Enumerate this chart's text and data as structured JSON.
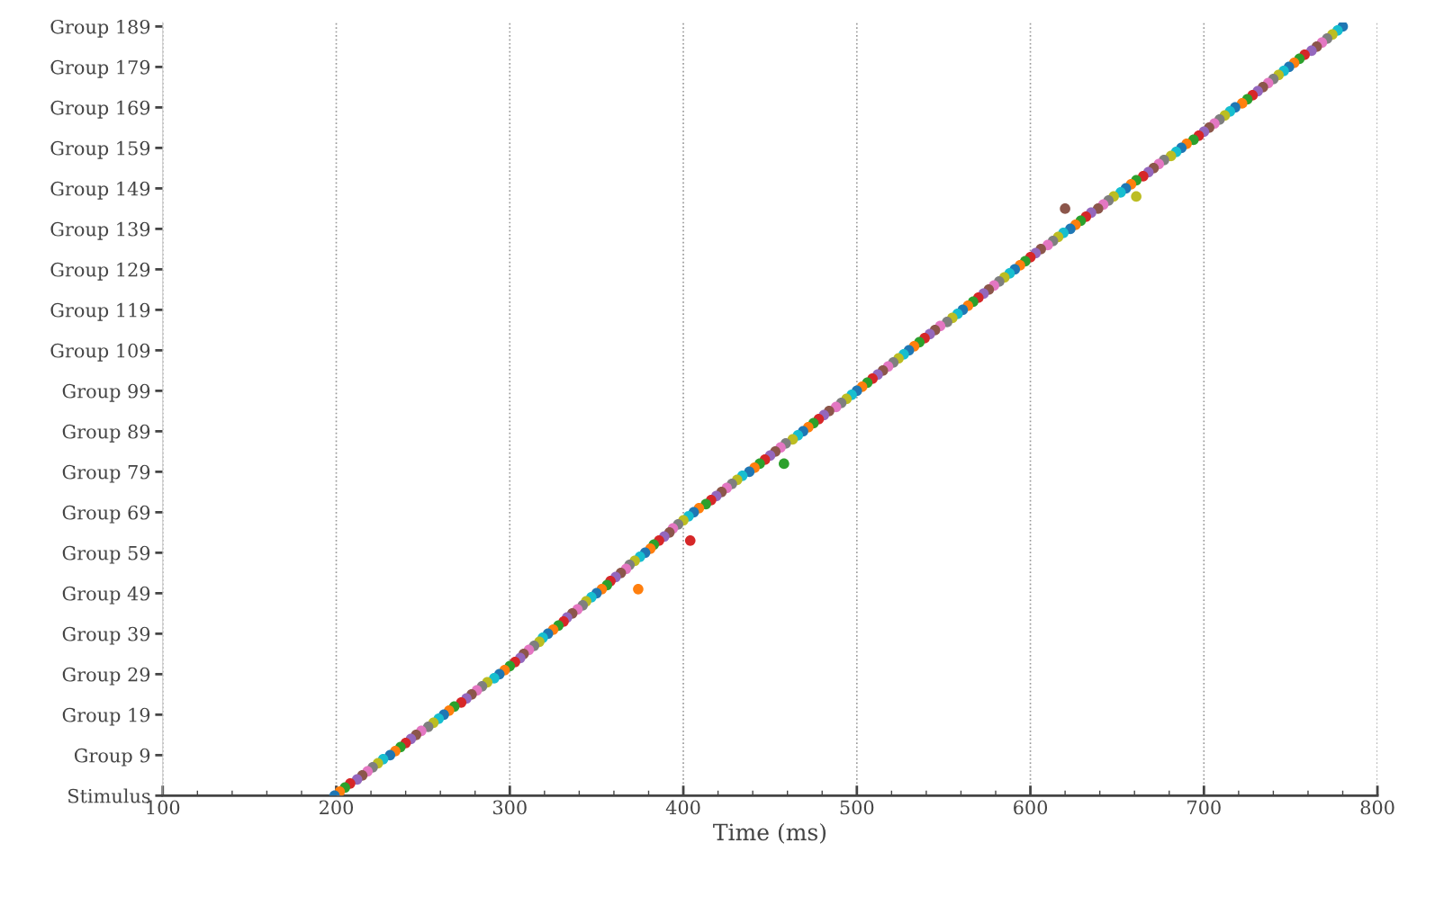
{
  "chart_data": {
    "type": "scatter",
    "orientation": "horizontal",
    "xlabel": "Time (ms)",
    "xlim": [
      100,
      800
    ],
    "xticks": [
      100,
      200,
      300,
      400,
      500,
      600,
      700,
      800
    ],
    "categories": [
      "Group 189",
      null,
      null,
      null,
      null,
      null,
      null,
      null,
      null,
      null,
      "Group 179",
      null,
      null,
      null,
      null,
      null,
      null,
      null,
      null,
      null,
      "Group 169",
      null,
      null,
      null,
      null,
      null,
      null,
      null,
      null,
      null,
      "Group 159",
      null,
      null,
      null,
      null,
      null,
      null,
      null,
      null,
      null,
      "Group 149",
      null,
      null,
      null,
      null,
      null,
      null,
      null,
      null,
      null,
      "Group 139",
      null,
      null,
      null,
      null,
      null,
      null,
      null,
      null,
      null,
      "Group 129",
      null,
      null,
      null,
      null,
      null,
      null,
      null,
      null,
      null,
      "Group 119",
      null,
      null,
      null,
      null,
      null,
      null,
      null,
      null,
      null,
      "Group 109",
      null,
      null,
      null,
      null,
      null,
      null,
      null,
      null,
      null,
      "Group 99",
      null,
      null,
      null,
      null,
      null,
      null,
      null,
      null,
      null,
      "Group 89",
      null,
      null,
      null,
      null,
      null,
      null,
      null,
      null,
      null,
      "Group 79",
      null,
      null,
      null,
      null,
      null,
      null,
      null,
      null,
      null,
      "Group 69",
      null,
      null,
      null,
      null,
      null,
      null,
      null,
      null,
      null,
      "Group 59",
      null,
      null,
      null,
      null,
      null,
      null,
      null,
      null,
      null,
      "Group 49",
      null,
      null,
      null,
      null,
      null,
      null,
      null,
      null,
      null,
      "Group 39",
      null,
      null,
      null,
      null,
      null,
      null,
      null,
      null,
      null,
      "Group 29",
      null,
      null,
      null,
      null,
      null,
      null,
      null,
      null,
      null,
      "Group 19",
      null,
      null,
      null,
      null,
      null,
      null,
      null,
      null,
      null,
      "Group 9",
      null,
      null,
      null,
      null,
      null,
      null,
      null,
      null,
      null,
      "Stimulus"
    ],
    "grid": "x",
    "marker": "circle",
    "series": [
      {
        "values": [
          780,
          777,
          774,
          771,
          768,
          765,
          762,
          758,
          755,
          752,
          749,
          746,
          743,
          740,
          737,
          734,
          731,
          728,
          725,
          722,
          718,
          715,
          712,
          709,
          706,
          703,
          700,
          697,
          694,
          690,
          687,
          684,
          681,
          677,
          674,
          671,
          668,
          665,
          661,
          658,
          655,
          652,
          648,
          645,
          642,
          639,
          635,
          632,
          629,
          626,
          623,
          619,
          616,
          613,
          610,
          606,
          603,
          600,
          597,
          594,
          591,
          588,
          585,
          582,
          579,
          576,
          573,
          570,
          567,
          564,
          561,
          558,
          555,
          552,
          548,
          545,
          542,
          539,
          536,
          533,
          530,
          527,
          524,
          521,
          518,
          515,
          512,
          509,
          506,
          503,
          500,
          497,
          494,
          491,
          488,
          484,
          481,
          478,
          475,
          472,
          469,
          466,
          463,
          459,
          456,
          453,
          450,
          447,
          444,
          441,
          438,
          434,
          431,
          428,
          425,
          422,
          419,
          416,
          413,
          409,
          406,
          403,
          400,
          397,
          394,
          392,
          389,
          386,
          383,
          381,
          378,
          375,
          372,
          369,
          367,
          364,
          361,
          358,
          356,
          353,
          350,
          347,
          344,
          342,
          339,
          336,
          333,
          331,
          328,
          325,
          322,
          319,
          317,
          314,
          311,
          308,
          306,
          303,
          300,
          297,
          294,
          291,
          287,
          284,
          281,
          278,
          275,
          272,
          268,
          265,
          262,
          259,
          256,
          253,
          249,
          246,
          243,
          240,
          237,
          234,
          231,
          227,
          224,
          221,
          218,
          215,
          212,
          208,
          205,
          202,
          199
        ],
        "colors": [
          "#1f77b4",
          "#17becf",
          "#bcbd22",
          "#7f7f7f",
          "#e377c2",
          "#8c564b",
          "#9467bd",
          "#d62728",
          "#2ca02c",
          "#ff7f0e",
          "#1f77b4",
          "#17becf",
          "#bcbd22",
          "#7f7f7f",
          "#e377c2",
          "#8c564b",
          "#9467bd",
          "#d62728",
          "#2ca02c",
          "#ff7f0e",
          "#1f77b4",
          "#17becf",
          "#bcbd22",
          "#7f7f7f",
          "#e377c2",
          "#8c564b",
          "#9467bd",
          "#d62728",
          "#2ca02c",
          "#ff7f0e",
          "#1f77b4",
          "#17becf",
          "#bcbd22",
          "#7f7f7f",
          "#e377c2",
          "#8c564b",
          "#9467bd",
          "#d62728",
          "#2ca02c",
          "#ff7f0e",
          "#1f77b4",
          "#17becf",
          "#bcbd22",
          "#7f7f7f",
          "#e377c2",
          "#8c564b",
          "#9467bd",
          "#d62728",
          "#2ca02c",
          "#ff7f0e",
          "#1f77b4",
          "#17becf",
          "#bcbd22",
          "#7f7f7f",
          "#e377c2",
          "#8c564b",
          "#9467bd",
          "#d62728",
          "#2ca02c",
          "#ff7f0e",
          "#1f77b4",
          "#17becf",
          "#bcbd22",
          "#7f7f7f",
          "#e377c2",
          "#8c564b",
          "#9467bd",
          "#d62728",
          "#2ca02c",
          "#ff7f0e",
          "#1f77b4",
          "#17becf",
          "#bcbd22",
          "#7f7f7f",
          "#e377c2",
          "#8c564b",
          "#9467bd",
          "#d62728",
          "#2ca02c",
          "#ff7f0e",
          "#1f77b4",
          "#17becf",
          "#bcbd22",
          "#7f7f7f",
          "#e377c2",
          "#8c564b",
          "#9467bd",
          "#d62728",
          "#2ca02c",
          "#ff7f0e",
          "#1f77b4",
          "#17becf",
          "#bcbd22",
          "#7f7f7f",
          "#e377c2",
          "#8c564b",
          "#9467bd",
          "#d62728",
          "#2ca02c",
          "#ff7f0e",
          "#1f77b4",
          "#17becf",
          "#bcbd22",
          "#7f7f7f",
          "#e377c2",
          "#8c564b",
          "#9467bd",
          "#d62728",
          "#2ca02c",
          "#ff7f0e",
          "#1f77b4",
          "#17becf",
          "#bcbd22",
          "#7f7f7f",
          "#e377c2",
          "#8c564b",
          "#9467bd",
          "#d62728",
          "#2ca02c",
          "#ff7f0e",
          "#1f77b4",
          "#17becf",
          "#bcbd22",
          "#7f7f7f",
          "#e377c2",
          "#8c564b",
          "#9467bd",
          "#d62728",
          "#2ca02c",
          "#ff7f0e",
          "#1f77b4",
          "#17becf",
          "#bcbd22",
          "#7f7f7f",
          "#e377c2",
          "#8c564b",
          "#9467bd",
          "#d62728",
          "#2ca02c",
          "#ff7f0e",
          "#1f77b4",
          "#17becf",
          "#bcbd22",
          "#7f7f7f",
          "#e377c2",
          "#8c564b",
          "#9467bd",
          "#d62728",
          "#2ca02c",
          "#ff7f0e",
          "#1f77b4",
          "#17becf",
          "#bcbd22",
          "#7f7f7f",
          "#e377c2",
          "#8c564b",
          "#9467bd",
          "#d62728",
          "#2ca02c",
          "#ff7f0e",
          "#1f77b4",
          "#17becf",
          "#bcbd22",
          "#7f7f7f",
          "#e377c2",
          "#8c564b",
          "#9467bd",
          "#d62728",
          "#2ca02c",
          "#ff7f0e",
          "#1f77b4",
          "#17becf",
          "#bcbd22",
          "#7f7f7f",
          "#e377c2",
          "#8c564b",
          "#9467bd",
          "#d62728",
          "#2ca02c",
          "#ff7f0e",
          "#1f77b4",
          "#17becf",
          "#bcbd22",
          "#7f7f7f",
          "#e377c2",
          "#8c564b",
          "#9467bd",
          "#d62728",
          "#2ca02c",
          "#ff7f0e",
          "#1f77b4"
        ]
      },
      {
        "values": [
          null,
          null,
          null,
          null,
          null,
          null,
          null,
          null,
          null,
          null,
          null,
          null,
          null,
          null,
          null,
          null,
          null,
          null,
          null,
          null,
          null,
          null,
          null,
          null,
          null,
          null,
          null,
          null,
          null,
          null,
          null,
          null,
          null,
          null,
          null,
          null,
          null,
          null,
          null,
          null,
          null,
          null,
          661,
          null,
          null,
          620,
          null,
          null,
          null,
          null,
          null,
          null,
          null,
          null,
          null,
          null,
          null,
          null,
          null,
          null,
          null,
          null,
          null,
          null,
          null,
          null,
          null,
          null,
          null,
          null,
          null,
          null,
          null,
          null,
          null,
          null,
          null,
          null,
          null,
          null,
          null,
          null,
          null,
          null,
          null,
          null,
          null,
          null,
          null,
          null,
          null,
          null,
          null,
          null,
          null,
          null,
          null,
          null,
          null,
          null,
          null,
          null,
          null,
          null,
          null,
          null,
          null,
          null,
          458,
          null,
          null,
          null,
          null,
          null,
          null,
          null,
          null,
          null,
          null,
          null,
          null,
          null,
          null,
          null,
          null,
          null,
          null,
          404,
          null,
          null,
          null,
          null,
          null,
          null,
          null,
          null,
          null,
          null,
          null,
          374,
          null,
          null,
          null,
          null,
          null,
          null,
          null,
          null,
          null,
          null,
          null,
          null,
          null,
          null,
          null,
          null,
          null,
          null,
          null,
          null,
          null,
          null,
          null,
          null,
          null,
          null,
          null,
          null,
          null,
          null,
          null,
          null,
          null,
          null,
          null,
          null,
          null,
          null,
          null,
          null,
          null,
          null,
          null,
          null,
          null,
          null,
          null,
          null,
          null,
          null,
          null
        ],
        "colors": [
          null,
          null,
          null,
          null,
          null,
          null,
          null,
          null,
          null,
          null,
          null,
          null,
          null,
          null,
          null,
          null,
          null,
          null,
          null,
          null,
          null,
          null,
          null,
          null,
          null,
          null,
          null,
          null,
          null,
          null,
          null,
          null,
          null,
          null,
          null,
          null,
          null,
          null,
          null,
          null,
          null,
          null,
          "#bcbd22",
          null,
          null,
          "#8c564b",
          null,
          null,
          null,
          null,
          null,
          null,
          null,
          null,
          null,
          null,
          null,
          null,
          null,
          null,
          null,
          null,
          null,
          null,
          null,
          null,
          null,
          null,
          null,
          null,
          null,
          null,
          null,
          null,
          null,
          null,
          null,
          null,
          null,
          null,
          null,
          null,
          null,
          null,
          null,
          null,
          null,
          null,
          null,
          null,
          null,
          null,
          null,
          null,
          null,
          null,
          null,
          null,
          null,
          null,
          null,
          null,
          null,
          null,
          null,
          null,
          null,
          null,
          "#2ca02c",
          null,
          null,
          null,
          null,
          null,
          null,
          null,
          null,
          null,
          null,
          null,
          null,
          null,
          null,
          null,
          null,
          null,
          null,
          "#d62728",
          null,
          null,
          null,
          null,
          null,
          null,
          null,
          null,
          null,
          null,
          null,
          "#ff7f0e",
          null,
          null,
          null,
          null,
          null,
          null,
          null,
          null,
          null,
          null,
          null,
          null,
          null,
          null,
          null,
          null,
          null,
          null,
          null,
          null,
          null,
          null,
          null,
          null,
          null,
          null,
          null,
          null,
          null,
          null,
          null,
          null,
          null,
          null,
          null,
          null,
          null,
          null,
          null,
          null,
          null,
          null,
          null,
          null,
          null,
          null,
          null,
          null,
          null,
          null,
          null
        ]
      }
    ]
  }
}
